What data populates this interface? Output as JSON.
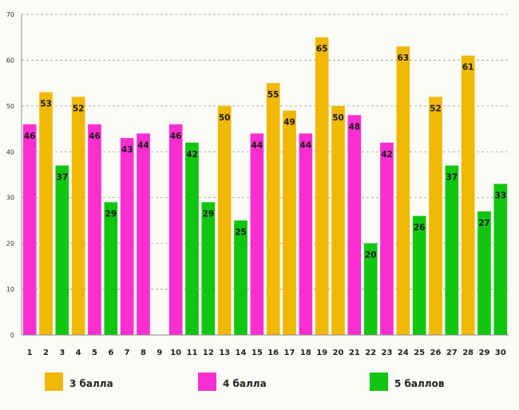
{
  "chart_data": {
    "type": "bar",
    "title": "",
    "xlabel": "",
    "ylabel": "",
    "ylim": [
      0,
      70
    ],
    "yticks": [
      0,
      10,
      20,
      30,
      40,
      50,
      60,
      70
    ],
    "grid": true,
    "legend_position": "bottom",
    "categories": [
      "1",
      "2",
      "3",
      "4",
      "5",
      "6",
      "7",
      "8",
      "9",
      "10",
      "11",
      "12",
      "13",
      "14",
      "15",
      "16",
      "17",
      "18",
      "19",
      "20",
      "21",
      "22",
      "23",
      "24",
      "25",
      "26",
      "27",
      "28",
      "29",
      "30"
    ],
    "values": [
      46,
      53,
      37,
      52,
      46,
      29,
      43,
      44,
      null,
      46,
      42,
      29,
      50,
      25,
      44,
      55,
      49,
      44,
      65,
      50,
      48,
      20,
      42,
      63,
      26,
      52,
      37,
      61,
      27,
      33
    ],
    "groups": [
      "4 балла",
      "3 балла",
      "5 баллов",
      "3 балла",
      "4 балла",
      "5 баллов",
      "4 балла",
      "4 балла",
      null,
      "4 балла",
      "5 баллов",
      "5 баллов",
      "3 балла",
      "5 баллов",
      "4 балла",
      "3 балла",
      "3 балла",
      "4 балла",
      "3 балла",
      "3 балла",
      "4 балла",
      "5 баллов",
      "4 балла",
      "3 балла",
      "5 баллов",
      "3 балла",
      "5 баллов",
      "3 балла",
      "5 баллов",
      "5 баллов"
    ],
    "series": [
      {
        "name": "3 балла",
        "color": "#f0b800"
      },
      {
        "name": "4 балла",
        "color": "#fb2ed0"
      },
      {
        "name": "5 баллов",
        "color": "#11c611"
      }
    ]
  }
}
